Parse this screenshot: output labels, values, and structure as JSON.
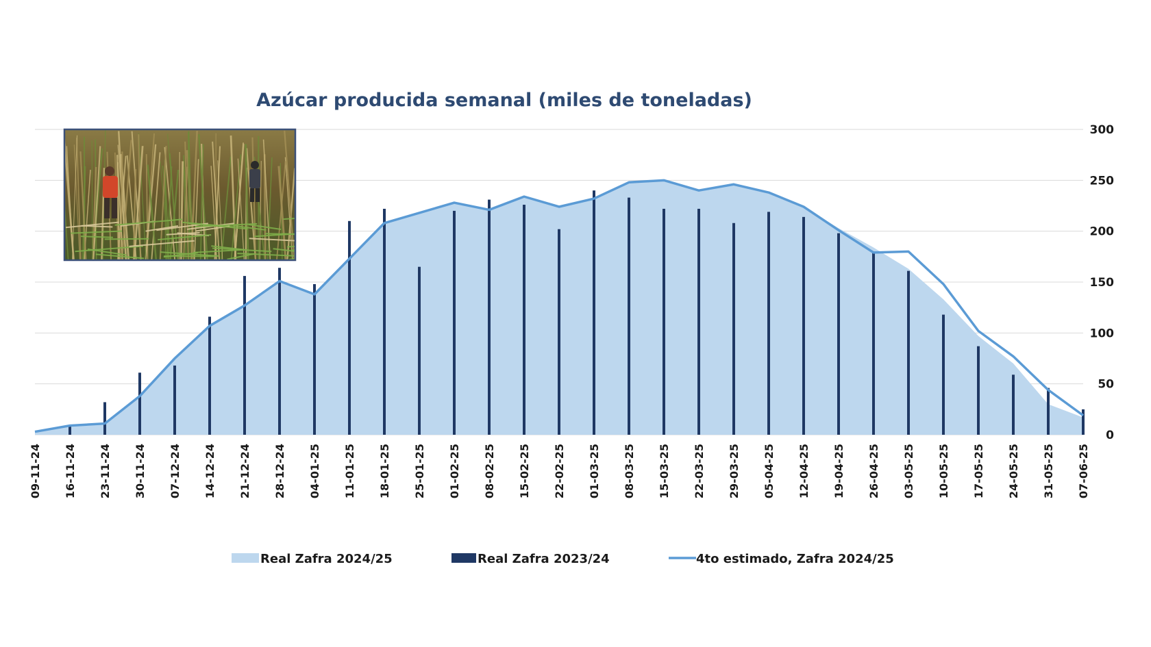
{
  "chart_data": {
    "type": "bar",
    "title": "Azúcar producida semanal (miles de toneladas)",
    "categories": [
      "09-11-24",
      "16-11-24",
      "23-11-24",
      "30-11-24",
      "07-12-24",
      "14-12-24",
      "21-12-24",
      "28-12-24",
      "04-01-25",
      "11-01-25",
      "18-01-25",
      "25-01-25",
      "01-02-25",
      "08-02-25",
      "15-02-25",
      "22-02-25",
      "01-03-25",
      "08-03-25",
      "15-03-25",
      "22-03-25",
      "29-03-25",
      "05-04-25",
      "12-04-25",
      "19-04-25",
      "26-04-25",
      "03-05-25",
      "10-05-25",
      "17-05-25",
      "24-05-25",
      "31-05-25",
      "07-06-25"
    ],
    "ylim": [
      0,
      300
    ],
    "yticks": [
      0,
      50,
      100,
      150,
      200,
      250,
      300
    ],
    "y_axis_side": "right",
    "grid": true,
    "legend_position": "bottom",
    "series": [
      {
        "name": "Real Zafra 2024/25",
        "type": "area",
        "color": "#bdd7ee",
        "values": [
          3,
          9,
          11,
          38,
          75,
          107,
          127,
          151,
          138,
          173,
          208,
          218,
          228,
          221,
          234,
          224,
          232,
          248,
          250,
          240,
          246,
          238,
          224,
          203,
          184,
          163,
          133,
          97,
          70,
          30,
          17
        ]
      },
      {
        "name": "Real Zafra 2023/24",
        "type": "bar",
        "color": "#1f3864",
        "values": [
          0,
          9,
          32,
          61,
          68,
          116,
          156,
          164,
          148,
          210,
          222,
          165,
          220,
          231,
          226,
          202,
          240,
          233,
          222,
          222,
          208,
          219,
          214,
          198,
          180,
          161,
          118,
          87,
          59,
          46,
          25
        ]
      },
      {
        "name": "4to estimado, Zafra 2024/25",
        "type": "line",
        "color": "#5b9bd5",
        "values": [
          3,
          9,
          11,
          38,
          75,
          107,
          127,
          151,
          138,
          173,
          208,
          218,
          228,
          221,
          234,
          224,
          232,
          248,
          250,
          240,
          246,
          238,
          224,
          201,
          179,
          180,
          148,
          102,
          77,
          44,
          19
        ]
      }
    ]
  },
  "photo": {
    "icon": "sugarcane-harvest-photo",
    "description_hidden": true
  }
}
